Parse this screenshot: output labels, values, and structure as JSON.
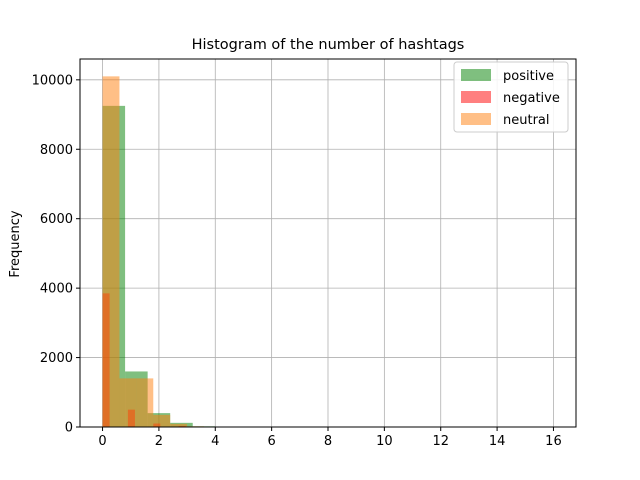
{
  "chart_data": {
    "type": "bar",
    "title": "Histogram of the number of hashtags",
    "xlabel": "",
    "ylabel": "Frequency",
    "xlim": [
      -0.8,
      16.8
    ],
    "ylim": [
      0,
      10600
    ],
    "x_ticks": [
      0,
      2,
      4,
      6,
      8,
      10,
      12,
      14,
      16
    ],
    "y_ticks": [
      0,
      2000,
      4000,
      6000,
      8000,
      10000
    ],
    "grid": true,
    "legend_position": "top-right",
    "series": [
      {
        "name": "positive",
        "color": "#008000",
        "opacity": 0.5,
        "bins": [
          {
            "x0": 0.0,
            "x1": 0.8,
            "count": 9250
          },
          {
            "x0": 0.8,
            "x1": 1.6,
            "count": 1600
          },
          {
            "x0": 1.6,
            "x1": 2.4,
            "count": 400
          },
          {
            "x0": 2.4,
            "x1": 3.2,
            "count": 120
          },
          {
            "x0": 3.2,
            "x1": 4.0,
            "count": 20
          },
          {
            "x0": 4.0,
            "x1": 4.8,
            "count": 10
          },
          {
            "x0": 4.8,
            "x1": 5.6,
            "count": 4
          },
          {
            "x0": 5.6,
            "x1": 6.4,
            "count": 2
          }
        ]
      },
      {
        "name": "negative",
        "color": "#ff0000",
        "opacity": 0.5,
        "bins": [
          {
            "x0": 0.0,
            "x1": 0.25,
            "count": 3850
          },
          {
            "x0": 0.9,
            "x1": 1.15,
            "count": 500
          },
          {
            "x0": 1.8,
            "x1": 2.05,
            "count": 100
          },
          {
            "x0": 2.7,
            "x1": 2.95,
            "count": 30
          }
        ]
      },
      {
        "name": "neutral",
        "color": "#ff7f0e",
        "opacity": 0.5,
        "bins": [
          {
            "x0": 0.0,
            "x1": 0.6,
            "count": 10100
          },
          {
            "x0": 0.6,
            "x1": 1.2,
            "count": 1400
          },
          {
            "x0": 1.2,
            "x1": 1.8,
            "count": 1400
          },
          {
            "x0": 1.8,
            "x1": 2.4,
            "count": 350
          },
          {
            "x0": 2.4,
            "x1": 3.0,
            "count": 90
          },
          {
            "x0": 3.0,
            "x1": 3.6,
            "count": 20
          },
          {
            "x0": 3.6,
            "x1": 4.2,
            "count": 10
          },
          {
            "x0": 4.2,
            "x1": 4.8,
            "count": 5
          }
        ]
      }
    ]
  }
}
